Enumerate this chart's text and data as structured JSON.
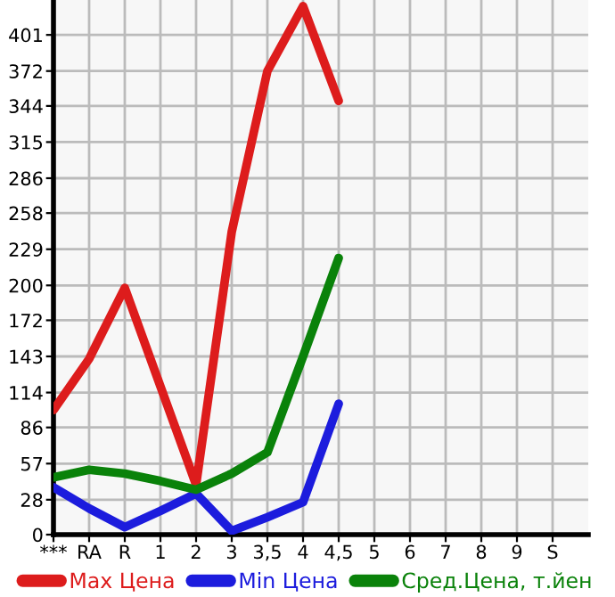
{
  "chart_data": {
    "type": "line",
    "categories": [
      "***",
      "RA",
      "R",
      "1",
      "2",
      "3",
      "3,5",
      "4",
      "4,5",
      "5",
      "6",
      "7",
      "8",
      "9",
      "S"
    ],
    "series": [
      {
        "name": "Max Цена",
        "color": "#dd1c1c",
        "values": [
          100,
          141,
          198,
          119,
          40,
          243,
          372,
          424,
          348,
          null,
          null,
          null,
          null,
          null,
          null
        ]
      },
      {
        "name": "Min Цена",
        "color": "#1c1cdd",
        "values": [
          38,
          21,
          6,
          19,
          33,
          3,
          14,
          26,
          105,
          null,
          null,
          null,
          null,
          null,
          null
        ]
      },
      {
        "name": "Сред.Цена, т.йен",
        "color": "#0a820a",
        "values": [
          46,
          52,
          49,
          43,
          36,
          49,
          66,
          143,
          222,
          null,
          null,
          null,
          null,
          null,
          null
        ]
      }
    ],
    "ylim": [
      0,
      429
    ],
    "yticks": [
      0,
      28,
      57,
      86,
      114,
      143,
      172,
      200,
      229,
      258,
      286,
      315,
      344,
      372,
      401
    ],
    "grid": true,
    "legend": "bottom",
    "marker": "none",
    "line_style": "solid"
  }
}
